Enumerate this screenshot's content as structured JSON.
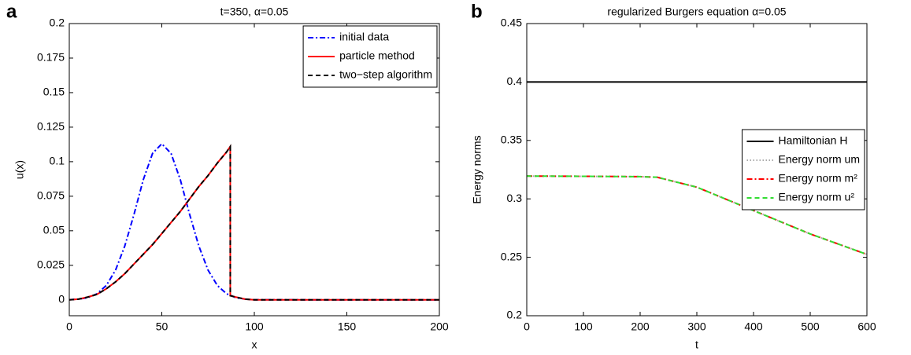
{
  "chart_data": [
    {
      "type": "line",
      "panel_label": "a",
      "title": "t=350, α=0.05",
      "xlabel": "x",
      "ylabel": "u(x)",
      "xlim": [
        0,
        200
      ],
      "xticks": [
        0,
        50,
        100,
        150,
        200
      ],
      "ylim": [
        -0.0115,
        0.2
      ],
      "yticks": [
        0,
        0.025,
        0.05,
        0.075,
        0.1,
        0.125,
        0.15,
        0.175,
        0.2
      ],
      "legend": "upper right",
      "series": [
        {
          "name": "initial data",
          "color": "#0000ff",
          "dash": "dashdot",
          "x": [
            0,
            5,
            10,
            15,
            20,
            25,
            30,
            35,
            40,
            45,
            50,
            55,
            60,
            65,
            70,
            75,
            80,
            85,
            90,
            95,
            100,
            150,
            200
          ],
          "values": [
            0.0001,
            0.0005,
            0.0016,
            0.0044,
            0.0104,
            0.0215,
            0.039,
            0.062,
            0.087,
            0.106,
            0.113,
            0.106,
            0.087,
            0.062,
            0.039,
            0.0215,
            0.0104,
            0.0044,
            0.0016,
            0.0005,
            0.0001,
            0,
            0
          ]
        },
        {
          "name": "particle method",
          "color": "#ff0000",
          "dash": "solid",
          "x": [
            0,
            5,
            10,
            15,
            20,
            25,
            30,
            35,
            40,
            45,
            50,
            55,
            60,
            65,
            70,
            75,
            80,
            85,
            87,
            87,
            90,
            95,
            100,
            150,
            200
          ],
          "values": [
            0,
            0.0005,
            0.002,
            0.004,
            0.008,
            0.013,
            0.019,
            0.026,
            0.033,
            0.04,
            0.048,
            0.056,
            0.064,
            0.073,
            0.082,
            0.09,
            0.099,
            0.107,
            0.111,
            0.003,
            0.002,
            0.0005,
            0,
            0,
            0
          ]
        },
        {
          "name": "two−step algorithm",
          "color": "#000000",
          "dash": "dashed",
          "x": [
            0,
            5,
            10,
            15,
            20,
            25,
            30,
            35,
            40,
            45,
            50,
            55,
            60,
            65,
            70,
            75,
            80,
            85,
            87,
            87,
            90,
            95,
            100,
            150,
            200
          ],
          "values": [
            0,
            0.0005,
            0.002,
            0.004,
            0.008,
            0.013,
            0.019,
            0.026,
            0.033,
            0.04,
            0.048,
            0.056,
            0.064,
            0.073,
            0.082,
            0.09,
            0.099,
            0.107,
            0.111,
            0.003,
            0.002,
            0.0005,
            0,
            0,
            0
          ]
        }
      ]
    },
    {
      "type": "line",
      "panel_label": "b",
      "title": "regularized Burgers equation α=0.05",
      "xlabel": "t",
      "ylabel": "Energy norms",
      "xlim": [
        0,
        600
      ],
      "xticks": [
        0,
        100,
        200,
        300,
        400,
        500,
        600
      ],
      "ylim": [
        0.2,
        0.45
      ],
      "yticks": [
        0.2,
        0.25,
        0.3,
        0.35,
        0.4,
        0.45
      ],
      "legend": "center right",
      "series": [
        {
          "name": "Hamiltonian H",
          "color": "#000000",
          "dash": "solid",
          "x": [
            0,
            600
          ],
          "values": [
            0.4,
            0.4
          ]
        },
        {
          "name": "Energy norm um",
          "color": "#aaaaaa",
          "dash": "dotted",
          "x": [
            0,
            100,
            200,
            230,
            300,
            400,
            500,
            600
          ],
          "values": [
            0.3195,
            0.3193,
            0.319,
            0.3185,
            0.31,
            0.29,
            0.27,
            0.2525
          ]
        },
        {
          "name": "Energy norm m²",
          "color": "#ff0000",
          "dash": "dashdot",
          "x": [
            0,
            100,
            200,
            230,
            300,
            400,
            500,
            600
          ],
          "values": [
            0.3195,
            0.3193,
            0.319,
            0.3185,
            0.31,
            0.29,
            0.27,
            0.2525
          ]
        },
        {
          "name": "Energy norm u²",
          "color": "#33dd33",
          "dash": "dashed",
          "x": [
            0,
            100,
            200,
            230,
            300,
            400,
            500,
            600
          ],
          "values": [
            0.3195,
            0.3193,
            0.319,
            0.3185,
            0.31,
            0.29,
            0.27,
            0.2525
          ]
        }
      ]
    }
  ]
}
